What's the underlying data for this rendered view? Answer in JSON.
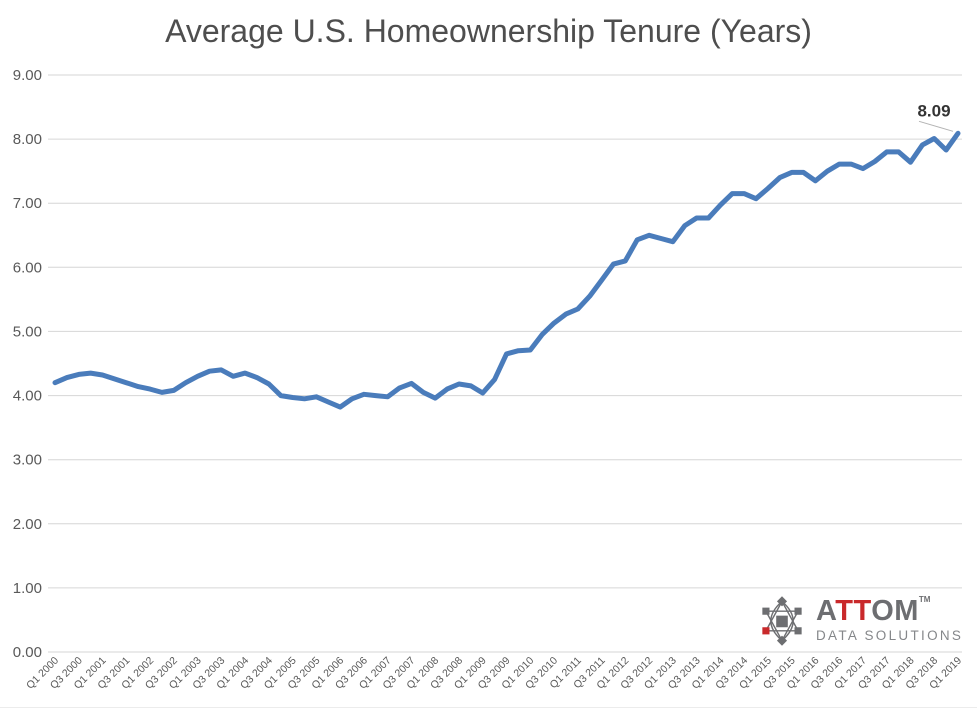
{
  "chart_data": {
    "type": "line",
    "title": "Average U.S. Homeownership Tenure (Years)",
    "xlabel": "",
    "ylabel": "",
    "ylim": [
      0,
      9
    ],
    "ytick_labels": [
      "0.00",
      "1.00",
      "2.00",
      "3.00",
      "4.00",
      "5.00",
      "6.00",
      "7.00",
      "8.00",
      "9.00"
    ],
    "x_tick_labels": [
      "Q1 2000",
      "Q3 2000",
      "Q1 2001",
      "Q3 2001",
      "Q1 2002",
      "Q3 2002",
      "Q1 2003",
      "Q3 2003",
      "Q1 2004",
      "Q3 2004",
      "Q1 2005",
      "Q3 2005",
      "Q1 2006",
      "Q3 2006",
      "Q1 2007",
      "Q3 2007",
      "Q1 2008",
      "Q3 2008",
      "Q1 2009",
      "Q3 2009",
      "Q1 2010",
      "Q3 2010",
      "Q1 2011",
      "Q3 2011",
      "Q1 2012",
      "Q3 2012",
      "Q1 2013",
      "Q3 2013",
      "Q1 2014",
      "Q3 2014",
      "Q1 2015",
      "Q3 2015",
      "Q1 2016",
      "Q3 2016",
      "Q1 2017",
      "Q3 2017",
      "Q1 2018",
      "Q3 2018",
      "Q1 2019"
    ],
    "categories": [
      "Q1 2000",
      "Q2 2000",
      "Q3 2000",
      "Q4 2000",
      "Q1 2001",
      "Q2 2001",
      "Q3 2001",
      "Q4 2001",
      "Q1 2002",
      "Q2 2002",
      "Q3 2002",
      "Q4 2002",
      "Q1 2003",
      "Q2 2003",
      "Q3 2003",
      "Q4 2003",
      "Q1 2004",
      "Q2 2004",
      "Q3 2004",
      "Q4 2004",
      "Q1 2005",
      "Q2 2005",
      "Q3 2005",
      "Q4 2005",
      "Q1 2006",
      "Q2 2006",
      "Q3 2006",
      "Q4 2006",
      "Q1 2007",
      "Q2 2007",
      "Q3 2007",
      "Q4 2007",
      "Q1 2008",
      "Q2 2008",
      "Q3 2008",
      "Q4 2008",
      "Q1 2009",
      "Q2 2009",
      "Q3 2009",
      "Q4 2009",
      "Q1 2010",
      "Q2 2010",
      "Q3 2010",
      "Q4 2010",
      "Q1 2011",
      "Q2 2011",
      "Q3 2011",
      "Q4 2011",
      "Q1 2012",
      "Q2 2012",
      "Q3 2012",
      "Q4 2012",
      "Q1 2013",
      "Q2 2013",
      "Q3 2013",
      "Q4 2013",
      "Q1 2014",
      "Q2 2014",
      "Q3 2014",
      "Q4 2014",
      "Q1 2015",
      "Q2 2015",
      "Q3 2015",
      "Q4 2015",
      "Q1 2016",
      "Q2 2016",
      "Q3 2016",
      "Q4 2016",
      "Q1 2017",
      "Q2 2017",
      "Q3 2017",
      "Q4 2017",
      "Q1 2018",
      "Q2 2018",
      "Q3 2018",
      "Q4 2018",
      "Q1 2019"
    ],
    "values": [
      4.2,
      4.28,
      4.33,
      4.35,
      4.32,
      4.26,
      4.2,
      4.14,
      4.1,
      4.05,
      4.08,
      4.2,
      4.3,
      4.38,
      4.4,
      4.3,
      4.35,
      4.28,
      4.18,
      4.0,
      3.97,
      3.95,
      3.98,
      3.9,
      3.82,
      3.95,
      4.02,
      4.0,
      3.98,
      4.12,
      4.19,
      4.05,
      3.96,
      4.1,
      4.18,
      4.15,
      4.04,
      4.25,
      4.65,
      4.7,
      4.71,
      4.95,
      5.13,
      5.27,
      5.35,
      5.55,
      5.8,
      6.05,
      6.1,
      6.43,
      6.5,
      6.45,
      6.4,
      6.65,
      6.77,
      6.77,
      6.97,
      7.15,
      7.15,
      7.07,
      7.23,
      7.4,
      7.48,
      7.48,
      7.35,
      7.5,
      7.61,
      7.61,
      7.54,
      7.65,
      7.8,
      7.8,
      7.64,
      7.91,
      8.01,
      7.83,
      8.09
    ],
    "end_label": "8.09",
    "grid": "horizontal-only",
    "legend": "none",
    "colors": {
      "line": "#4a7cbb",
      "gridline": "#d6d6d6",
      "tick_text": "#595959",
      "title_text": "#4e4e4e",
      "data_label": "#333333",
      "leader": "#b3b3b3"
    }
  },
  "branding": {
    "wordmark_a": "A",
    "wordmark_tt": "TT",
    "wordmark_om": "OM",
    "trademark": "TM",
    "subtext": "DATA SOLUTIONS",
    "colors": {
      "gray": "#6d6e71",
      "red": "#c9292b",
      "subtext_gray": "#85878a"
    }
  }
}
